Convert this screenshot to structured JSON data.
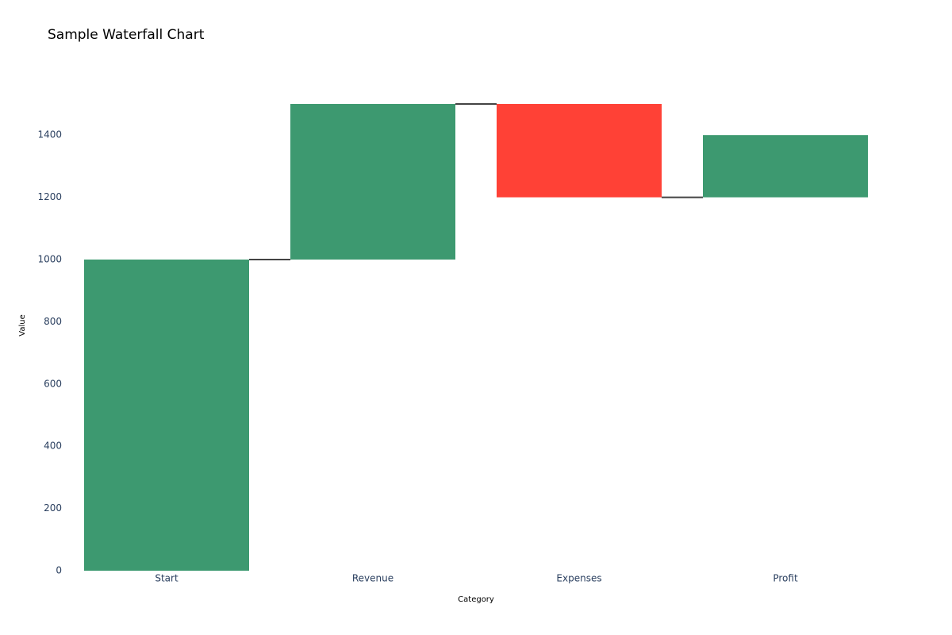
{
  "chart_data": {
    "type": "waterfall",
    "title": "Sample Waterfall Chart",
    "x_label": "Category",
    "y_label": "Value",
    "categories": [
      "Start",
      "Revenue",
      "Expenses",
      "Profit"
    ],
    "values": [
      1000,
      500,
      -300,
      200
    ],
    "increasing_color": "#3d9970",
    "decreasing_color": "#ff4136",
    "connector_color": "#444444",
    "ylim": [
      0,
      1579
    ],
    "yticks": [
      0,
      200,
      400,
      600,
      800,
      1000,
      1200,
      1400
    ],
    "grid": false
  }
}
